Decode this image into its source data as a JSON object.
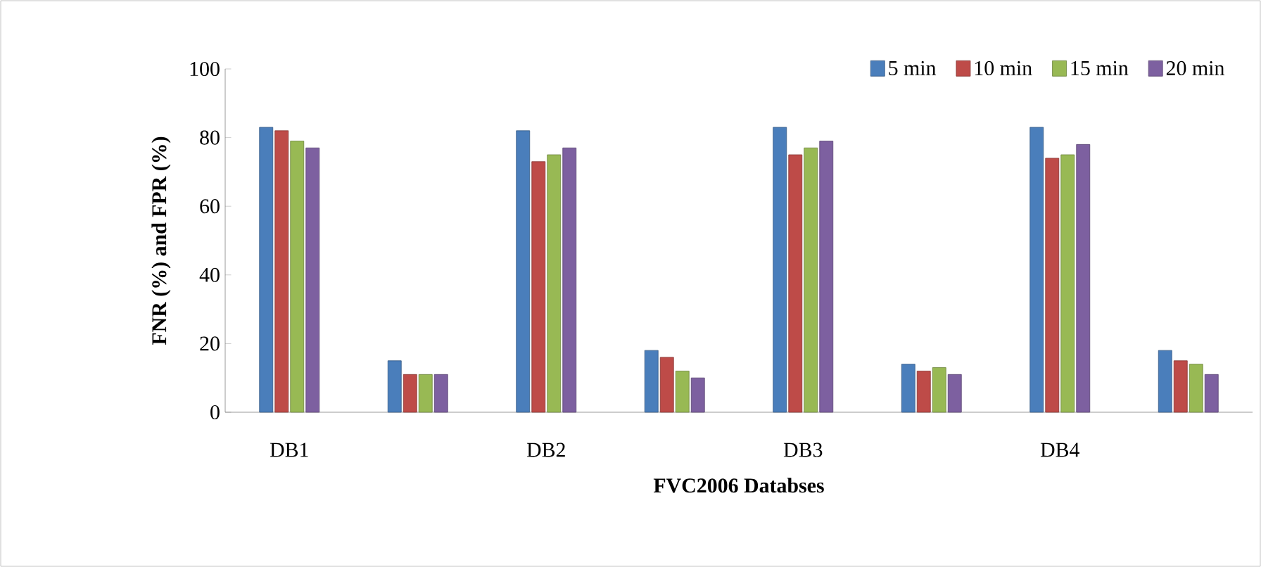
{
  "chart_data": {
    "type": "bar",
    "xlabel": "FVC2006 Databses",
    "ylabel": "FNR (%) and FPR (%)",
    "categories": [
      "DB1",
      null,
      "DB2",
      null,
      "DB3",
      null,
      "DB4",
      null
    ],
    "series": [
      {
        "name": "5 min",
        "color": "#4a7ebb",
        "values": [
          83,
          15,
          82,
          18,
          83,
          14,
          83,
          18
        ]
      },
      {
        "name": "10 min",
        "color": "#be4b48",
        "values": [
          82,
          11,
          73,
          16,
          75,
          12,
          74,
          15
        ]
      },
      {
        "name": "15 min",
        "color": "#98b954",
        "values": [
          79,
          11,
          75,
          12,
          77,
          13,
          75,
          14
        ]
      },
      {
        "name": "20 min",
        "color": "#7d60a0",
        "values": [
          77,
          11,
          77,
          10,
          79,
          11,
          78,
          11
        ]
      }
    ],
    "ylim": [
      0,
      100
    ],
    "yticks": [
      0,
      20,
      40,
      60,
      80,
      100
    ],
    "grid": false,
    "legend": "top right"
  }
}
